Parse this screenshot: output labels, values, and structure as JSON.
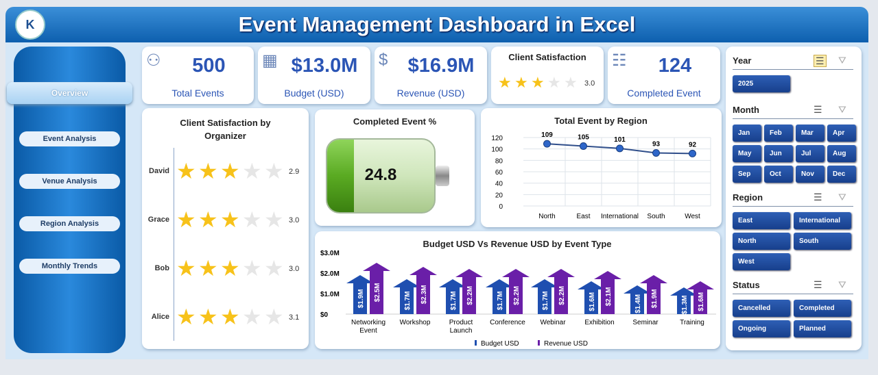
{
  "header": {
    "title": "Event Management Dashboard in Excel",
    "logo_text": "K"
  },
  "sidebar": {
    "items": [
      {
        "label": "Overview",
        "active": true
      },
      {
        "label": "Event  Analysis"
      },
      {
        "label": "Venue Analysis"
      },
      {
        "label": "Region Analysis"
      },
      {
        "label": "Monthly Trends"
      }
    ]
  },
  "kpis": [
    {
      "value": "500",
      "label": "Total Events",
      "icon": "org-chart-icon"
    },
    {
      "value": "$13.0M",
      "label": "Budget (USD)",
      "icon": "calculator-icon"
    },
    {
      "value": "$16.9M",
      "label": "Revenue (USD)",
      "icon": "money-hand-icon"
    },
    {
      "title": "Client Satisfaction",
      "rating": "3.0",
      "stars": 3
    },
    {
      "value": "124",
      "label": "Completed Event",
      "icon": "checklist-icon"
    }
  ],
  "satisfaction": {
    "title": "Client Satisfaction by Organizer",
    "rows": [
      {
        "name": "David",
        "rating": "2.9",
        "value": 2.9
      },
      {
        "name": "Grace",
        "rating": "3.0",
        "value": 3.0
      },
      {
        "name": "Bob",
        "rating": "3.0",
        "value": 3.0
      },
      {
        "name": "Alice",
        "rating": "3.1",
        "value": 3.1
      }
    ]
  },
  "completed": {
    "title": "Completed Event %",
    "value": "24.8",
    "fill_percent": 24.8
  },
  "chart_data": [
    {
      "type": "line",
      "title": "Total Event by Region",
      "categories": [
        "North",
        "East",
        "International",
        "South",
        "West"
      ],
      "values": [
        109,
        105,
        101,
        93,
        92
      ],
      "ylim": [
        0,
        120
      ],
      "yticks": [
        "0",
        "20",
        "40",
        "60",
        "80",
        "100",
        "120"
      ],
      "grid": true
    },
    {
      "type": "bar",
      "title": "Budget USD Vs Revenue USD by Event Type",
      "categories": [
        "Networking Event",
        "Workshop",
        "Product Launch",
        "Conference",
        "Webinar",
        "Exhibition",
        "Seminar",
        "Training"
      ],
      "series": [
        {
          "name": "Budget USD",
          "values": [
            1.9,
            1.7,
            1.7,
            1.7,
            1.7,
            1.6,
            1.4,
            1.3
          ],
          "labels": [
            "$1.9M",
            "$1.7M",
            "$1.7M",
            "$1.7M",
            "$1.7M",
            "$1.6M",
            "$1.4M",
            "$1.3M"
          ],
          "color": "#1f4fb0"
        },
        {
          "name": "Revenue USD",
          "values": [
            2.5,
            2.3,
            2.2,
            2.2,
            2.2,
            2.1,
            1.9,
            1.6
          ],
          "labels": [
            "$2.5M",
            "$2.3M",
            "$2.2M",
            "$2.2M",
            "$2.2M",
            "$2.1M",
            "$1.9M",
            "$1.6M"
          ],
          "color": "#6a1fa8"
        }
      ],
      "ylim": [
        0,
        3
      ],
      "yticks": [
        "$0",
        "$1.0M",
        "$2.0M",
        "$3.0M"
      ],
      "legend": "bottom"
    }
  ],
  "slicers": {
    "year": {
      "title": "Year",
      "items": [
        "2025"
      ]
    },
    "month": {
      "title": "Month",
      "items": [
        "Jan",
        "Feb",
        "Mar",
        "Apr",
        "May",
        "Jun",
        "Jul",
        "Aug",
        "Sep",
        "Oct",
        "Nov",
        "Dec"
      ]
    },
    "region": {
      "title": "Region",
      "items": [
        "East",
        "International",
        "North",
        "South",
        "West"
      ]
    },
    "status": {
      "title": "Status",
      "items": [
        "Cancelled",
        "Completed",
        "Ongoing",
        "Planned"
      ]
    }
  }
}
